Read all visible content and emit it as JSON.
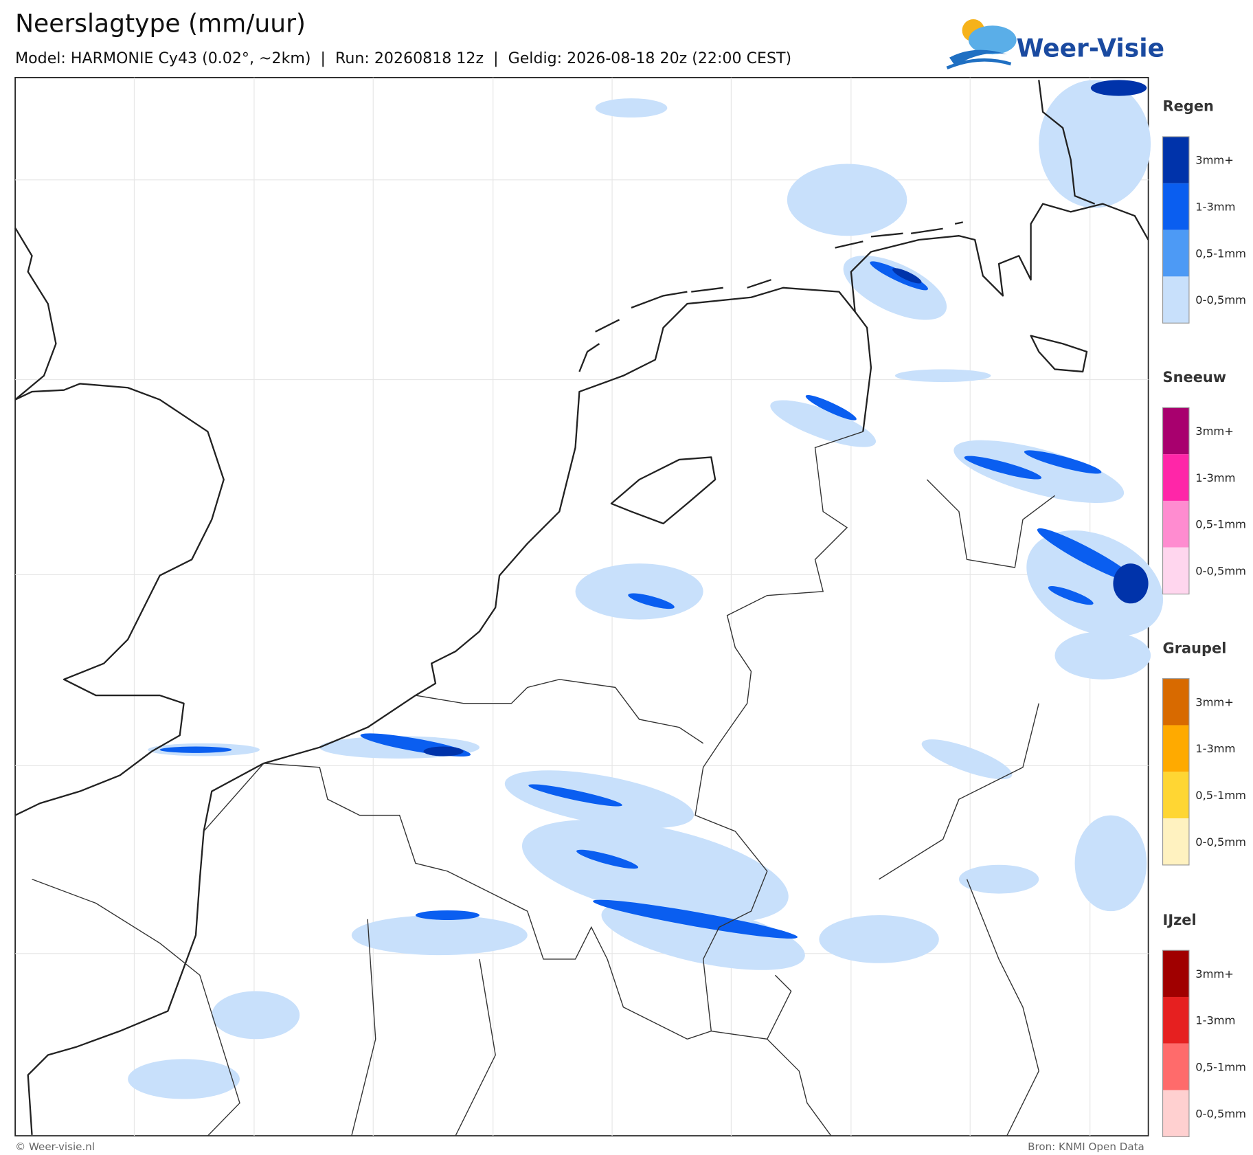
{
  "header": {
    "title": "Neerslagtype (mm/uur)",
    "subtitle": "Model: HARMONIE Cy43 (0.02°, ~2km)  |  Run: 20260818 12z  |  Geldig: 2026-08-18 20z (22:00 CEST)",
    "logo": "Weer-Visie"
  },
  "legend": [
    {
      "title": "Regen",
      "items": [
        {
          "label": "3mm+",
          "color": "#0033aa"
        },
        {
          "label": "1-3mm",
          "color": "#0a5ef0"
        },
        {
          "label": "0,5-1mm",
          "color": "#4d9af5"
        },
        {
          "label": "0-0,5mm",
          "color": "#c8e0fb"
        }
      ]
    },
    {
      "title": "Sneeuw",
      "items": [
        {
          "label": "3mm+",
          "color": "#a8006e"
        },
        {
          "label": "1-3mm",
          "color": "#ff26a8"
        },
        {
          "label": "0,5-1mm",
          "color": "#ff8cd0"
        },
        {
          "label": "0-0,5mm",
          "color": "#ffd6ee"
        }
      ]
    },
    {
      "title": "Graupel",
      "items": [
        {
          "label": "3mm+",
          "color": "#d86a00"
        },
        {
          "label": "1-3mm",
          "color": "#ffaa00"
        },
        {
          "label": "0,5-1mm",
          "color": "#ffd633"
        },
        {
          "label": "0-0,5mm",
          "color": "#fff2c0"
        }
      ]
    },
    {
      "title": "IJzel",
      "items": [
        {
          "label": "3mm+",
          "color": "#a00000"
        },
        {
          "label": "1-3mm",
          "color": "#e62020"
        },
        {
          "label": "0,5-1mm",
          "color": "#ff6b6b"
        },
        {
          "label": "0-0,5mm",
          "color": "#ffd0d0"
        }
      ]
    }
  ],
  "footer": {
    "left": "© Weer-visie.nl",
    "right": "Bron: KNMI Open Data"
  }
}
